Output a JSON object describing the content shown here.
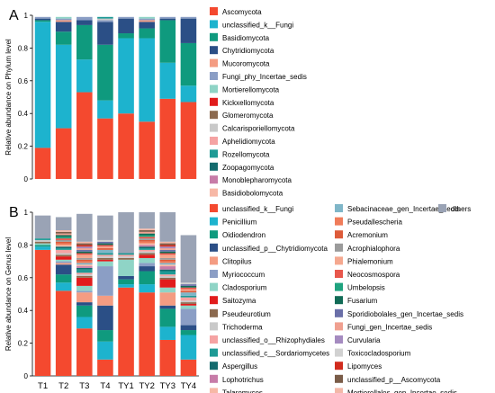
{
  "chart_data": [
    {
      "type": "bar",
      "stacked": true,
      "panel_label": "A",
      "ylabel": "Relative abundance on Phylum level",
      "ylim": [
        0,
        1
      ],
      "yticks": [
        "0",
        "0.2",
        "0.4",
        "0.6",
        "0.8",
        "1"
      ],
      "categories": [
        "T1",
        "T2",
        "T3",
        "T4",
        "TY1",
        "TY2",
        "TY3",
        "TY4"
      ],
      "legend_position": "right",
      "series": [
        {
          "name": "Ascomycota",
          "color": "#F4492F",
          "values": [
            0.19,
            0.31,
            0.53,
            0.37,
            0.4,
            0.35,
            0.49,
            0.47
          ]
        },
        {
          "name": "unclassified_k__Fungi",
          "color": "#1DB3CE",
          "values": [
            0.77,
            0.51,
            0.2,
            0.11,
            0.46,
            0.51,
            0.22,
            0.1
          ]
        },
        {
          "name": "Basidiomycota",
          "color": "#0F9A7E",
          "values": [
            0.01,
            0.08,
            0.21,
            0.34,
            0.03,
            0.06,
            0.26,
            0.26
          ]
        },
        {
          "name": "Chytridiomycota",
          "color": "#2B4F86",
          "values": [
            0.01,
            0.06,
            0.03,
            0.14,
            0.09,
            0.04,
            0.01,
            0.15
          ]
        },
        {
          "name": "Mucoromycota",
          "color": "#F49C82",
          "values": [
            0.0,
            0.01,
            0.0,
            0.0,
            0.0,
            0.01,
            0.0,
            0.0
          ]
        },
        {
          "name": "Fungi_phy_Incertae_sedis",
          "color": "#8B9EC5",
          "values": [
            0.01,
            0.01,
            0.02,
            0.01,
            0.01,
            0.01,
            0.01,
            0.01
          ]
        },
        {
          "name": "Mortierellomycota",
          "color": "#8FD4C6",
          "values": [
            0.0,
            0.01,
            0.0,
            0.0,
            0.0,
            0.01,
            0.0,
            0.0
          ]
        },
        {
          "name": "Kickxellomycota",
          "color": "#E11C1C",
          "values": [
            0.0,
            0.0,
            0.0,
            0.0,
            0.0,
            0.0,
            0.0,
            0.0
          ]
        },
        {
          "name": "Glomeromycota",
          "color": "#8C6A4F",
          "values": [
            0.0,
            0.0,
            0.0,
            0.0,
            0.0,
            0.0,
            0.0,
            0.0
          ]
        },
        {
          "name": "Calcarisporiellomycota",
          "color": "#C9C9C9",
          "values": [
            0.0,
            0.0,
            0.0,
            0.01,
            0.0,
            0.0,
            0.0,
            0.0
          ]
        },
        {
          "name": "Aphelidiomycota",
          "color": "#F5A3A3",
          "values": [
            0.0,
            0.0,
            0.0,
            0.0,
            0.0,
            0.0,
            0.0,
            0.0
          ]
        },
        {
          "name": "Rozellomycota",
          "color": "#1E9A95",
          "values": [
            0.0,
            0.0,
            0.0,
            0.01,
            0.0,
            0.0,
            0.0,
            0.0
          ]
        },
        {
          "name": "Zoopagomycota",
          "color": "#146B6E",
          "values": [
            0.0,
            0.0,
            0.0,
            0.0,
            0.0,
            0.0,
            0.0,
            0.0
          ]
        },
        {
          "name": "Monoblepharomycota",
          "color": "#C77CA8",
          "values": [
            0.0,
            0.0,
            0.0,
            0.0,
            0.0,
            0.0,
            0.0,
            0.0
          ]
        },
        {
          "name": "Basidiobolomycota",
          "color": "#F7B8A6",
          "values": [
            0.0,
            0.0,
            0.0,
            0.0,
            0.0,
            0.0,
            0.0,
            0.0
          ]
        }
      ]
    },
    {
      "type": "bar",
      "stacked": true,
      "panel_label": "B",
      "ylabel": "Relative abundance on Genus level",
      "ylim": [
        0,
        1
      ],
      "yticks": [
        "0",
        "0.2",
        "0.4",
        "0.6",
        "0.8",
        "1"
      ],
      "categories": [
        "T1",
        "T2",
        "T3",
        "T4",
        "TY1",
        "TY2",
        "TY3",
        "TY4"
      ],
      "legend_position": "right",
      "series": [
        {
          "name": "unclassified_k__Fungi",
          "color": "#F4492F",
          "values": [
            0.77,
            0.52,
            0.29,
            0.1,
            0.54,
            0.51,
            0.22,
            0.1
          ]
        },
        {
          "name": "Penicillium",
          "color": "#1DB3CE",
          "values": [
            0.02,
            0.05,
            0.07,
            0.11,
            0.02,
            0.05,
            0.08,
            0.15
          ]
        },
        {
          "name": "Oidiodendron",
          "color": "#0F9A7E",
          "values": [
            0.01,
            0.05,
            0.07,
            0.07,
            0.03,
            0.08,
            0.11,
            0.03
          ]
        },
        {
          "name": "unclassified_p__Chytridiomycota",
          "color": "#2B4F86",
          "values": [
            0.0,
            0.06,
            0.02,
            0.15,
            0.02,
            0.03,
            0.02,
            0.03
          ]
        },
        {
          "name": "Clitopilus",
          "color": "#F49C82",
          "values": [
            0.0,
            0.01,
            0.06,
            0.06,
            0.0,
            0.0,
            0.08,
            0.0
          ]
        },
        {
          "name": "Myriococcum",
          "color": "#8B9EC5",
          "values": [
            0.0,
            0.01,
            0.01,
            0.18,
            0.0,
            0.02,
            0.0,
            0.1
          ]
        },
        {
          "name": "Cladosporium",
          "color": "#8FD4C6",
          "values": [
            0.01,
            0.01,
            0.03,
            0.03,
            0.1,
            0.03,
            0.03,
            0.02
          ]
        },
        {
          "name": "Saitozyma",
          "color": "#E11C1C",
          "values": [
            0.0,
            0.02,
            0.05,
            0.01,
            0.0,
            0.02,
            0.05,
            0.01
          ]
        },
        {
          "name": "Pseudeurotium",
          "color": "#8C6A4F",
          "values": [
            0.01,
            0.01,
            0.01,
            0.01,
            0.01,
            0.01,
            0.01,
            0.01
          ]
        },
        {
          "name": "Trichoderma",
          "color": "#C9C9C9",
          "values": [
            0.01,
            0.01,
            0.01,
            0.01,
            0.01,
            0.01,
            0.01,
            0.01
          ]
        },
        {
          "name": "unclassified_o__Rhizophydiales",
          "color": "#F5A3A3",
          "values": [
            0.0,
            0.02,
            0.01,
            0.01,
            0.01,
            0.01,
            0.01,
            0.02
          ]
        },
        {
          "name": "unclassified_c__Sordariomycetes",
          "color": "#1E9A95",
          "values": [
            0.01,
            0.01,
            0.02,
            0.01,
            0.01,
            0.01,
            0.02,
            0.01
          ]
        },
        {
          "name": "Aspergillus",
          "color": "#146B6E",
          "values": [
            0.0,
            0.01,
            0.01,
            0.0,
            0.0,
            0.01,
            0.01,
            0.0
          ]
        },
        {
          "name": "Lophotrichus",
          "color": "#C77CA8",
          "values": [
            0.0,
            0.0,
            0.01,
            0.0,
            0.0,
            0.01,
            0.02,
            0.0
          ]
        },
        {
          "name": "Talaromyces",
          "color": "#F7B8A6",
          "values": [
            0.0,
            0.01,
            0.01,
            0.0,
            0.0,
            0.01,
            0.01,
            0.0
          ]
        },
        {
          "name": "Sebacinaceae_gen_Incertae_sedis",
          "color": "#7FB6C8",
          "values": [
            0.0,
            0.0,
            0.01,
            0.02,
            0.0,
            0.0,
            0.01,
            0.02
          ]
        },
        {
          "name": "Pseudallescheria",
          "color": "#F07C5A",
          "values": [
            0.0,
            0.01,
            0.01,
            0.0,
            0.0,
            0.01,
            0.01,
            0.0
          ]
        },
        {
          "name": "Acremonium",
          "color": "#DD5B3A",
          "values": [
            0.0,
            0.01,
            0.01,
            0.01,
            0.0,
            0.01,
            0.01,
            0.01
          ]
        },
        {
          "name": "Acrophialophora",
          "color": "#9B9B9B",
          "values": [
            0.0,
            0.01,
            0.01,
            0.0,
            0.0,
            0.01,
            0.01,
            0.0
          ]
        },
        {
          "name": "Phialemonium",
          "color": "#F5A88F",
          "values": [
            0.0,
            0.0,
            0.02,
            0.01,
            0.0,
            0.0,
            0.02,
            0.01
          ]
        },
        {
          "name": "Neocosmospora",
          "color": "#E8574C",
          "values": [
            0.0,
            0.01,
            0.01,
            0.01,
            0.0,
            0.01,
            0.01,
            0.01
          ]
        },
        {
          "name": "Umbelopsis",
          "color": "#1FA37F",
          "values": [
            0.0,
            0.01,
            0.0,
            0.0,
            0.0,
            0.01,
            0.0,
            0.0
          ]
        },
        {
          "name": "Fusarium",
          "color": "#116B56",
          "values": [
            0.0,
            0.01,
            0.01,
            0.01,
            0.0,
            0.01,
            0.01,
            0.01
          ]
        },
        {
          "name": "Sporidiobolales_gen_Incertae_sedis",
          "color": "#6A6FA8",
          "values": [
            0.0,
            0.0,
            0.01,
            0.01,
            0.0,
            0.0,
            0.01,
            0.01
          ]
        },
        {
          "name": "Fungi_gen_Incertae_sedis",
          "color": "#F0A090",
          "values": [
            0.0,
            0.01,
            0.01,
            0.0,
            0.0,
            0.01,
            0.01,
            0.0
          ]
        },
        {
          "name": "Curvularia",
          "color": "#A58BC0",
          "values": [
            0.0,
            0.0,
            0.01,
            0.0,
            0.0,
            0.0,
            0.01,
            0.0
          ]
        },
        {
          "name": "Toxicocladosporium",
          "color": "#D1D1D1",
          "values": [
            0.0,
            0.0,
            0.0,
            0.01,
            0.0,
            0.0,
            0.0,
            0.01
          ]
        },
        {
          "name": "Lipomyces",
          "color": "#D12B1D",
          "values": [
            0.0,
            0.0,
            0.01,
            0.0,
            0.0,
            0.0,
            0.01,
            0.0
          ]
        },
        {
          "name": "unclassified_p__Ascomycota",
          "color": "#7A5C48",
          "values": [
            0.0,
            0.01,
            0.01,
            0.0,
            0.0,
            0.01,
            0.01,
            0.0
          ]
        },
        {
          "name": "Mortierellales_gen_Incertae_sedis",
          "color": "#F3B8A8",
          "values": [
            0.0,
            0.01,
            0.01,
            0.0,
            0.0,
            0.01,
            0.01,
            0.0
          ]
        },
        {
          "name": "others",
          "color": "#9AA3B5",
          "values": [
            0.14,
            0.08,
            0.17,
            0.15,
            0.25,
            0.13,
            0.18,
            0.29
          ]
        }
      ]
    }
  ]
}
